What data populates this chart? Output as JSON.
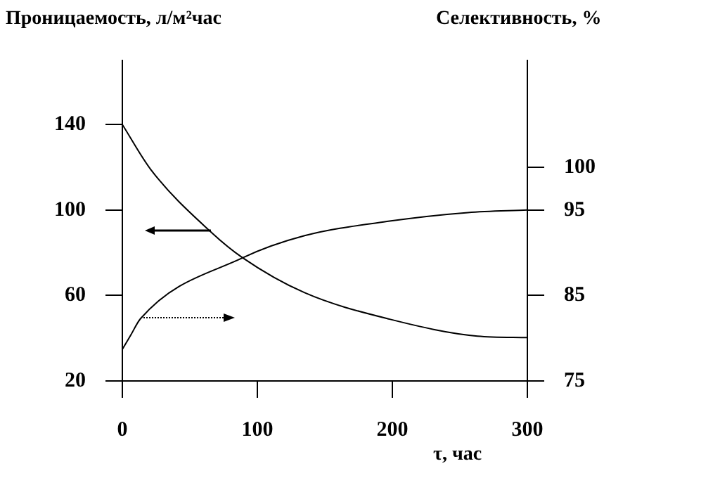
{
  "chart_data": {
    "type": "line",
    "xlabel": "τ, час",
    "ylabel": "Проницаемость, л/м²час",
    "y2label": "Селективность, %",
    "series": [
      {
        "color": "#000000",
        "x": [
          0,
          21,
          66,
          89,
          135,
          198,
          263,
          300
        ],
        "values": [
          140,
          119,
          89.5,
          77.7,
          61.3,
          48.9,
          41,
          40.3
        ]
      },
      {
        "color": "#000000",
        "axis": "y2",
        "x": [
          0,
          6,
          13.5,
          89,
          135,
          198,
          256,
          300
        ],
        "values": [
          78.7,
          80.3,
          82.3,
          89.4,
          92,
          93.7,
          94.7,
          95
        ]
      }
    ],
    "xlim": [
      0,
      300
    ],
    "xticks": [
      0,
      100,
      200,
      300
    ],
    "ylim": [
      20,
      170
    ],
    "yticks": [
      20,
      60,
      100,
      140
    ],
    "y2lim": [
      75,
      112.5
    ],
    "y2ticks": [
      75,
      85,
      95,
      100
    ],
    "grid": false,
    "legend": false,
    "marker": "none",
    "line_style": "solid"
  }
}
